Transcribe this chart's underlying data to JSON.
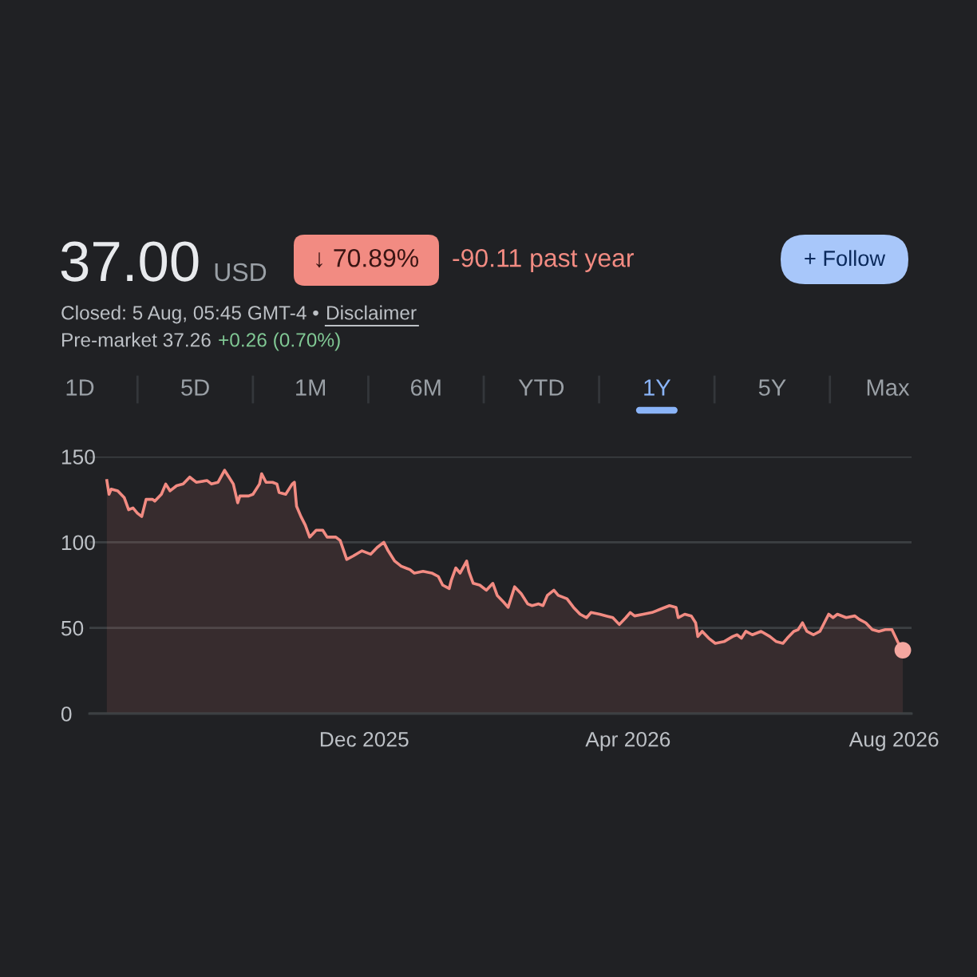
{
  "chart_data": {
    "type": "area",
    "title": "37.00",
    "annotations": [
      "USD",
      "↓ 70.89%",
      "-90.11 past year",
      "+ Follow",
      "Closed: 5 Aug, 05:45 GMT-4 •",
      "Disclaimer",
      "Pre-market 37.26",
      "+0.26 (0.70%)",
      "1D",
      "5D",
      "1M",
      "6M",
      "YTD",
      "1Y",
      "5Y",
      "Max"
    ],
    "x": [
      "2025-08-05",
      "2025-08-06",
      "2025-08-07",
      "2025-08-10",
      "2025-08-13",
      "2025-08-15",
      "2025-08-17",
      "2025-08-19",
      "2025-08-21",
      "2025-08-23",
      "2025-08-26",
      "2025-08-27",
      "2025-08-30",
      "2025-09-01",
      "2025-09-03",
      "2025-09-06",
      "2025-09-09",
      "2025-09-12",
      "2025-09-15",
      "2025-09-20",
      "2025-09-22",
      "2025-09-25",
      "2025-09-28",
      "2025-09-30",
      "2025-10-02",
      "2025-10-04",
      "2025-10-05",
      "2025-10-09",
      "2025-10-11",
      "2025-10-14",
      "2025-10-15",
      "2025-10-17",
      "2025-10-20",
      "2025-10-22",
      "2025-10-23",
      "2025-10-26",
      "2025-10-29",
      "2025-10-30",
      "2025-10-31",
      "2025-11-02",
      "2025-11-04",
      "2025-11-06",
      "2025-11-09",
      "2025-11-12",
      "2025-11-14",
      "2025-11-18",
      "2025-11-20",
      "2025-11-23",
      "2025-11-26",
      "2025-11-30",
      "2025-12-04",
      "2025-12-07",
      "2025-12-10",
      "2025-12-12",
      "2025-12-15",
      "2025-12-18",
      "2025-12-22",
      "2025-12-24",
      "2025-12-28",
      "2026-01-01",
      "2026-01-04",
      "2026-01-06",
      "2026-01-09",
      "2026-01-10",
      "2026-01-12",
      "2026-01-14",
      "2026-01-17",
      "2026-01-18",
      "2026-01-20",
      "2026-01-23",
      "2026-01-26",
      "2026-01-29",
      "2026-01-31",
      "2026-02-03",
      "2026-02-05",
      "2026-02-08",
      "2026-02-11",
      "2026-02-14",
      "2026-02-16",
      "2026-02-19",
      "2026-02-21",
      "2026-02-23",
      "2026-02-26",
      "2026-02-28",
      "2026-03-04",
      "2026-03-07",
      "2026-03-10",
      "2026-03-13",
      "2026-03-15",
      "2026-03-19",
      "2026-03-22",
      "2026-03-25",
      "2026-03-28",
      "2026-03-31",
      "2026-04-02",
      "2026-04-04",
      "2026-04-08",
      "2026-04-12",
      "2026-04-16",
      "2026-04-20",
      "2026-04-23",
      "2026-04-24",
      "2026-04-27",
      "2026-04-30",
      "2026-05-02",
      "2026-05-03",
      "2026-05-05",
      "2026-05-08",
      "2026-05-11",
      "2026-05-15",
      "2026-05-19",
      "2026-05-21",
      "2026-05-23",
      "2026-05-25",
      "2026-05-28",
      "2026-06-01",
      "2026-06-05",
      "2026-06-08",
      "2026-06-11",
      "2026-06-13",
      "2026-06-16",
      "2026-06-18",
      "2026-06-20",
      "2026-06-22",
      "2026-06-25",
      "2026-06-28",
      "2026-07-02",
      "2026-07-04",
      "2026-07-06",
      "2026-07-10",
      "2026-07-14",
      "2026-07-16",
      "2026-07-19",
      "2026-07-22",
      "2026-07-25",
      "2026-07-28",
      "2026-07-31",
      "2026-08-03",
      "2026-08-05"
    ],
    "series": [
      {
        "color": "#f28b82",
        "values": [
          136,
          128,
          131,
          130,
          126,
          119,
          120,
          117,
          115,
          125,
          125,
          124,
          128,
          134,
          130,
          133,
          134,
          138,
          135,
          136,
          134,
          135,
          142,
          138,
          134,
          123,
          127,
          127,
          128,
          134,
          140,
          135,
          135,
          134,
          129,
          128,
          134,
          135,
          121,
          115,
          110,
          103,
          107,
          107,
          103,
          103,
          101,
          90,
          92,
          95,
          93,
          97,
          100,
          95,
          89,
          86,
          84,
          82,
          83,
          82,
          80,
          75,
          73,
          78,
          85,
          82,
          89,
          83,
          76,
          75,
          72,
          76,
          69,
          65,
          62,
          74,
          70,
          64,
          63,
          64,
          63,
          69,
          72,
          69,
          67,
          62,
          58,
          56,
          59,
          58,
          57,
          56,
          52,
          56,
          59,
          57,
          58,
          59,
          61,
          63,
          62,
          56,
          58,
          57,
          53,
          45,
          48,
          44,
          41,
          42,
          45,
          46,
          44,
          48,
          46,
          48,
          45,
          42,
          41,
          44,
          48,
          49,
          53,
          48,
          46,
          48,
          58,
          56,
          58,
          56,
          57,
          55,
          53,
          49,
          48,
          49,
          49,
          41,
          37
        ]
      },
      {
        "type": "scatter",
        "marker": "circle",
        "color": "#f4a7a0",
        "x": [
          "2026-08-05"
        ],
        "values": [
          37
        ]
      }
    ],
    "xlim": [
      "2025-07-28",
      "2026-08-09"
    ],
    "xticks": [
      {
        "value": "2025-12-01",
        "label": "Dec 2025"
      },
      {
        "value": "2026-04-01",
        "label": "Apr 2026"
      },
      {
        "value": "2026-08-01",
        "label": "Aug 2026"
      }
    ],
    "ylim": [
      0,
      150
    ],
    "yticks": [
      0,
      50,
      100,
      150
    ],
    "grid": "y",
    "line_style": "solid"
  }
}
